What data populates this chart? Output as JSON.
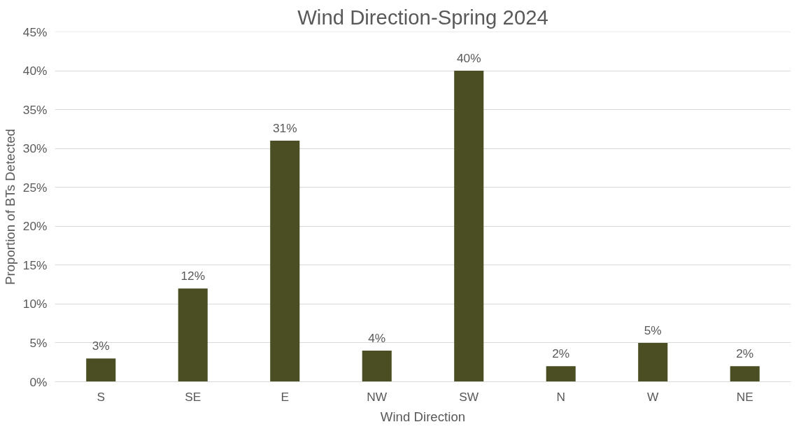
{
  "chart_data": {
    "type": "bar",
    "title": "Wind Direction-Spring 2024",
    "xlabel": "Wind Direction",
    "ylabel": "Proportion of BTs Detected",
    "categories": [
      "S",
      "SE",
      "E",
      "NW",
      "SW",
      "N",
      "W",
      "NE"
    ],
    "values": [
      3,
      12,
      31,
      4,
      40,
      2,
      5,
      2
    ],
    "value_labels": [
      "3%",
      "12%",
      "31%",
      "4%",
      "40%",
      "2%",
      "5%",
      "2%"
    ],
    "color": "#4a4e22",
    "ylim": [
      0,
      45
    ],
    "yticks": [
      {
        "value": 0,
        "label": "0%"
      },
      {
        "value": 5,
        "label": "5%"
      },
      {
        "value": 10,
        "label": "10%"
      },
      {
        "value": 15,
        "label": "15%"
      },
      {
        "value": 20,
        "label": "20%"
      },
      {
        "value": 25,
        "label": "25%"
      },
      {
        "value": 30,
        "label": "30%"
      },
      {
        "value": 35,
        "label": "35%"
      },
      {
        "value": 40,
        "label": "40%"
      },
      {
        "value": 45,
        "label": "45%"
      }
    ],
    "grid": "y"
  }
}
